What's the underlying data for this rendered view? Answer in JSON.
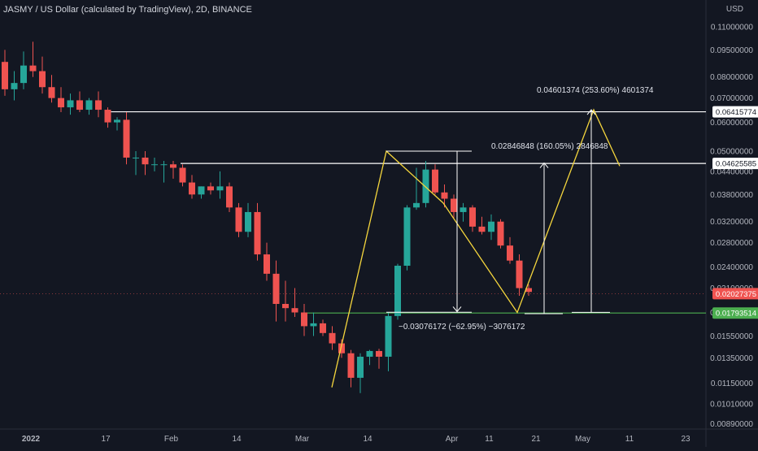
{
  "header": {
    "symbol_title": "JASMY / US Dollar (calculated by TradingView), 2D, BINANCE",
    "currency_line1": "USD"
  },
  "chart_data": {
    "type": "candlestick",
    "symbol": "JASMY / US Dollar (calculated by TradingView), 2D, BINANCE",
    "currency": "USD",
    "y_scale": "log",
    "ylim": [
      0.0086,
      0.125
    ],
    "grid": false,
    "colors": {
      "up": "#26a69a",
      "down": "#ef5350",
      "background": "#131722",
      "drawing_yellow": "#f5d63d",
      "drawing_white": "#ffffff",
      "green_line": "#4caf50"
    },
    "y_ticks": [
      "0.11000000",
      "0.09500000",
      "0.08000000",
      "0.07000000",
      "0.06000000",
      "0.05000000",
      "0.04400000",
      "0.03800000",
      "0.03200000",
      "0.02800000",
      "0.02400000",
      "0.02100000",
      "0.01800000",
      "0.01550000",
      "0.01350000",
      "0.01150000",
      "0.01010000",
      "0.00890000"
    ],
    "y_tick_values": [
      0.11,
      0.095,
      0.08,
      0.07,
      0.06,
      0.05,
      0.044,
      0.038,
      0.032,
      0.028,
      0.024,
      0.021,
      0.018,
      0.0155,
      0.0135,
      0.0115,
      0.0101,
      0.0089
    ],
    "x_ticks": [
      {
        "label": "2022",
        "i": 0,
        "bold": true
      },
      {
        "label": "17",
        "i": 8
      },
      {
        "label": "Feb",
        "i": 15
      },
      {
        "label": "14",
        "i": 22
      },
      {
        "label": "Mar",
        "i": 29
      },
      {
        "label": "14",
        "i": 36
      },
      {
        "label": "Apr",
        "i": 45
      },
      {
        "label": "11",
        "i": 49
      },
      {
        "label": "21",
        "i": 54
      },
      {
        "label": "May",
        "i": 59
      },
      {
        "label": "11",
        "i": 64
      },
      {
        "label": "23",
        "i": 70
      }
    ],
    "candles": [
      {
        "o": 0.088,
        "h": 0.095,
        "l": 0.071,
        "c": 0.074
      },
      {
        "o": 0.074,
        "h": 0.083,
        "l": 0.069,
        "c": 0.077
      },
      {
        "o": 0.077,
        "h": 0.094,
        "l": 0.074,
        "c": 0.086
      },
      {
        "o": 0.086,
        "h": 0.1,
        "l": 0.08,
        "c": 0.083
      },
      {
        "o": 0.083,
        "h": 0.091,
        "l": 0.072,
        "c": 0.075
      },
      {
        "o": 0.075,
        "h": 0.081,
        "l": 0.068,
        "c": 0.07
      },
      {
        "o": 0.07,
        "h": 0.075,
        "l": 0.064,
        "c": 0.066
      },
      {
        "o": 0.066,
        "h": 0.072,
        "l": 0.063,
        "c": 0.069
      },
      {
        "o": 0.069,
        "h": 0.073,
        "l": 0.064,
        "c": 0.065
      },
      {
        "o": 0.065,
        "h": 0.07,
        "l": 0.063,
        "c": 0.069
      },
      {
        "o": 0.069,
        "h": 0.073,
        "l": 0.062,
        "c": 0.065
      },
      {
        "o": 0.065,
        "h": 0.066,
        "l": 0.058,
        "c": 0.06
      },
      {
        "o": 0.06,
        "h": 0.062,
        "l": 0.057,
        "c": 0.061
      },
      {
        "o": 0.061,
        "h": 0.064,
        "l": 0.046,
        "c": 0.048
      },
      {
        "o": 0.048,
        "h": 0.05,
        "l": 0.043,
        "c": 0.048
      },
      {
        "o": 0.048,
        "h": 0.05,
        "l": 0.043,
        "c": 0.046
      },
      {
        "o": 0.046,
        "h": 0.048,
        "l": 0.044,
        "c": 0.046
      },
      {
        "o": 0.046,
        "h": 0.047,
        "l": 0.041,
        "c": 0.046
      },
      {
        "o": 0.046,
        "h": 0.047,
        "l": 0.042,
        "c": 0.045
      },
      {
        "o": 0.045,
        "h": 0.046,
        "l": 0.04,
        "c": 0.041
      },
      {
        "o": 0.041,
        "h": 0.043,
        "l": 0.037,
        "c": 0.038
      },
      {
        "o": 0.038,
        "h": 0.04,
        "l": 0.037,
        "c": 0.04
      },
      {
        "o": 0.04,
        "h": 0.041,
        "l": 0.038,
        "c": 0.039
      },
      {
        "o": 0.039,
        "h": 0.044,
        "l": 0.037,
        "c": 0.04
      },
      {
        "o": 0.04,
        "h": 0.041,
        "l": 0.034,
        "c": 0.035
      },
      {
        "o": 0.035,
        "h": 0.036,
        "l": 0.029,
        "c": 0.03
      },
      {
        "o": 0.03,
        "h": 0.036,
        "l": 0.029,
        "c": 0.034
      },
      {
        "o": 0.034,
        "h": 0.036,
        "l": 0.025,
        "c": 0.026
      },
      {
        "o": 0.026,
        "h": 0.028,
        "l": 0.022,
        "c": 0.023
      },
      {
        "o": 0.023,
        "h": 0.025,
        "l": 0.017,
        "c": 0.019
      },
      {
        "o": 0.019,
        "h": 0.022,
        "l": 0.017,
        "c": 0.0185
      },
      {
        "o": 0.0185,
        "h": 0.021,
        "l": 0.0175,
        "c": 0.018
      },
      {
        "o": 0.018,
        "h": 0.019,
        "l": 0.0155,
        "c": 0.0165
      },
      {
        "o": 0.0165,
        "h": 0.018,
        "l": 0.0155,
        "c": 0.0168
      },
      {
        "o": 0.0168,
        "h": 0.0172,
        "l": 0.0155,
        "c": 0.0158
      },
      {
        "o": 0.0158,
        "h": 0.0165,
        "l": 0.0142,
        "c": 0.0148
      },
      {
        "o": 0.0148,
        "h": 0.0152,
        "l": 0.0135,
        "c": 0.0139
      },
      {
        "o": 0.0139,
        "h": 0.0142,
        "l": 0.0112,
        "c": 0.0119
      },
      {
        "o": 0.0119,
        "h": 0.0139,
        "l": 0.0108,
        "c": 0.0136
      },
      {
        "o": 0.0136,
        "h": 0.0142,
        "l": 0.0129,
        "c": 0.0141
      },
      {
        "o": 0.0141,
        "h": 0.0143,
        "l": 0.0126,
        "c": 0.0136
      },
      {
        "o": 0.0136,
        "h": 0.018,
        "l": 0.0124,
        "c": 0.0176
      },
      {
        "o": 0.0176,
        "h": 0.0245,
        "l": 0.0172,
        "c": 0.0242
      },
      {
        "o": 0.0242,
        "h": 0.0355,
        "l": 0.0235,
        "c": 0.035
      },
      {
        "o": 0.035,
        "h": 0.045,
        "l": 0.0345,
        "c": 0.036
      },
      {
        "o": 0.036,
        "h": 0.047,
        "l": 0.035,
        "c": 0.0445
      },
      {
        "o": 0.0445,
        "h": 0.046,
        "l": 0.038,
        "c": 0.0385
      },
      {
        "o": 0.0385,
        "h": 0.0405,
        "l": 0.035,
        "c": 0.037
      },
      {
        "o": 0.037,
        "h": 0.038,
        "l": 0.0325,
        "c": 0.034
      },
      {
        "o": 0.034,
        "h": 0.036,
        "l": 0.032,
        "c": 0.035
      },
      {
        "o": 0.035,
        "h": 0.0355,
        "l": 0.03,
        "c": 0.031
      },
      {
        "o": 0.031,
        "h": 0.033,
        "l": 0.0295,
        "c": 0.03
      },
      {
        "o": 0.03,
        "h": 0.0335,
        "l": 0.0285,
        "c": 0.032
      },
      {
        "o": 0.032,
        "h": 0.0325,
        "l": 0.027,
        "c": 0.0275
      },
      {
        "o": 0.0275,
        "h": 0.029,
        "l": 0.0245,
        "c": 0.025
      },
      {
        "o": 0.025,
        "h": 0.026,
        "l": 0.02,
        "c": 0.021
      },
      {
        "o": 0.021,
        "h": 0.0215,
        "l": 0.02,
        "c": 0.0205
      }
    ],
    "horizontal_lines": [
      {
        "price": 0.06415774,
        "label": "0.06415774",
        "color": "#ffffff"
      },
      {
        "price": 0.04625585,
        "label": "0.04625585",
        "color": "#ffffff"
      },
      {
        "price": 0.01793514,
        "label": "0.01793514",
        "color": "#4caf50"
      }
    ],
    "last_price": {
      "price": 0.02027375,
      "label": "0.02027375",
      "color": "#ef5350"
    },
    "measure_annotations": [
      {
        "text": "0.04601374 (253.60%) 4601374"
      },
      {
        "text": "0.02846848 (160.05%) 2846848"
      },
      {
        "text": "−0.03076172 (−62.95%) −3076172"
      }
    ]
  }
}
